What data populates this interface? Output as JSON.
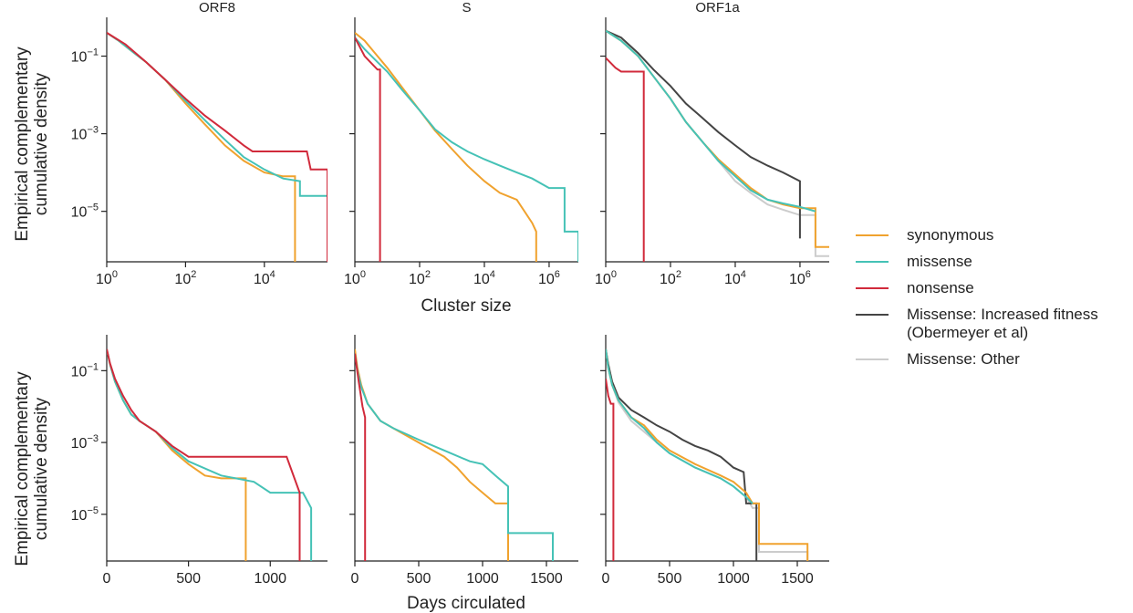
{
  "figure": {
    "ylabel_line1": "Empirical complementary",
    "ylabel_line2": "cumulative density",
    "row1_xlabel": "Cluster size",
    "row2_xlabel": "Days circulated"
  },
  "colors": {
    "synonymous": "#f0a22e",
    "missense": "#45c2b6",
    "nonsense": "#d12a3b",
    "increased": "#444444",
    "other": "#cccccc"
  },
  "legend": [
    {
      "key": "synonymous",
      "label": "synonymous"
    },
    {
      "key": "missense",
      "label": "missense"
    },
    {
      "key": "nonsense",
      "label": "nonsense"
    },
    {
      "key": "increased",
      "label": "Missense: Increased fitness\n(Obermeyer et al)"
    },
    {
      "key": "other",
      "label": "Missense: Other"
    }
  ],
  "chart_data": [
    {
      "type": "line",
      "title": "ORF8",
      "row": 0,
      "col": 0,
      "xscale": "log",
      "yscale": "log",
      "xlim": [
        1,
        400000
      ],
      "ylim": [
        5e-07,
        1
      ],
      "xticks": [
        1,
        100,
        10000
      ],
      "xticklabels": [
        "10^0",
        "10^2",
        "10^4"
      ],
      "yticks": [
        0.1,
        0.001,
        1e-05
      ],
      "yticklabels": [
        "10^-1",
        "10^-3",
        "10^-5"
      ],
      "series": [
        {
          "name": "synonymous",
          "x": [
            1,
            2,
            5,
            10,
            30,
            100,
            300,
            1000,
            3000,
            10000,
            30000,
            60000,
            60000
          ],
          "y": [
            0.4,
            0.25,
            0.12,
            0.07,
            0.025,
            0.006,
            0.0018,
            0.0005,
            0.0002,
            0.0001,
            8e-05,
            8e-05,
            5e-07
          ]
        },
        {
          "name": "missense",
          "x": [
            1,
            2,
            5,
            10,
            30,
            100,
            300,
            1000,
            3000,
            10000,
            30000,
            80000,
            80000,
            400000
          ],
          "y": [
            0.4,
            0.25,
            0.12,
            0.07,
            0.025,
            0.007,
            0.0023,
            0.0007,
            0.00025,
            0.00012,
            7e-05,
            6e-05,
            2.5e-05,
            2.5e-05
          ]
        },
        {
          "name": "nonsense",
          "x": [
            1,
            3,
            10,
            30,
            100,
            300,
            1000,
            3000,
            5000,
            30000,
            120000,
            150000,
            400000,
            400000
          ],
          "y": [
            0.4,
            0.2,
            0.07,
            0.025,
            0.008,
            0.003,
            0.0012,
            0.0005,
            0.00035,
            0.00035,
            0.00035,
            0.00012,
            0.00012,
            5e-07
          ]
        }
      ]
    },
    {
      "type": "line",
      "title": "S",
      "row": 0,
      "col": 1,
      "xscale": "log",
      "yscale": "log",
      "xlim": [
        1,
        8000000
      ],
      "ylim": [
        5e-07,
        1
      ],
      "xticks": [
        1,
        100,
        10000,
        1000000
      ],
      "xticklabels": [
        "10^0",
        "10^2",
        "10^4",
        "10^6"
      ],
      "yticks": [
        0.1,
        0.001,
        1e-05
      ],
      "yticklabels": [],
      "series": [
        {
          "name": "synonymous",
          "x": [
            1,
            2,
            5,
            10,
            30,
            100,
            300,
            1000,
            3000,
            10000,
            30000,
            100000,
            300000,
            400000,
            400000
          ],
          "y": [
            0.4,
            0.25,
            0.1,
            0.05,
            0.015,
            0.004,
            0.0012,
            0.0004,
            0.00015,
            6e-05,
            3e-05,
            2e-05,
            5e-06,
            3e-06,
            5e-07
          ]
        },
        {
          "name": "missense",
          "x": [
            1,
            2,
            5,
            10,
            30,
            100,
            300,
            1000,
            3000,
            10000,
            30000,
            100000,
            300000,
            1000000,
            3000000,
            3000000,
            8000000,
            8000000
          ],
          "y": [
            0.3,
            0.15,
            0.07,
            0.04,
            0.013,
            0.004,
            0.0013,
            0.0006,
            0.00035,
            0.00022,
            0.00015,
            0.0001,
            7e-05,
            4e-05,
            4e-05,
            3e-06,
            3e-06,
            5e-07
          ]
        },
        {
          "name": "nonsense",
          "x": [
            1,
            2,
            3,
            5,
            6,
            6
          ],
          "y": [
            0.3,
            0.1,
            0.07,
            0.045,
            0.045,
            5e-07
          ]
        }
      ]
    },
    {
      "type": "line",
      "title": "ORF1a",
      "row": 0,
      "col": 2,
      "xscale": "log",
      "yscale": "log",
      "xlim": [
        1,
        8000000
      ],
      "ylim": [
        5e-07,
        1
      ],
      "xticks": [
        1,
        100,
        10000,
        1000000
      ],
      "xticklabels": [
        "10^0",
        "10^2",
        "10^4",
        "10^6"
      ],
      "yticks": [
        0.1,
        0.001,
        1e-05
      ],
      "yticklabels": [],
      "series": [
        {
          "name": "synonymous",
          "x": [
            1,
            3,
            10,
            30,
            100,
            300,
            1000,
            3000,
            10000,
            30000,
            100000,
            300000,
            1000000,
            3000000,
            3000000,
            8000000
          ],
          "y": [
            0.45,
            0.25,
            0.1,
            0.03,
            0.008,
            0.002,
            0.0006,
            0.00022,
            9e-05,
            4e-05,
            2e-05,
            1.5e-05,
            1.2e-05,
            1.2e-05,
            1.2e-06,
            1.2e-06
          ]
        },
        {
          "name": "missense",
          "x": [
            1,
            3,
            10,
            30,
            100,
            300,
            1000,
            3000,
            10000,
            30000,
            100000,
            300000,
            1000000,
            3000000
          ],
          "y": [
            0.45,
            0.25,
            0.1,
            0.03,
            0.008,
            0.002,
            0.0006,
            0.0002,
            8e-05,
            3.5e-05,
            2e-05,
            1.6e-05,
            1.3e-05,
            1e-05
          ]
        },
        {
          "name": "nonsense",
          "x": [
            1,
            2,
            3,
            15,
            15
          ],
          "y": [
            0.09,
            0.05,
            0.04,
            0.04,
            5e-07
          ]
        },
        {
          "name": "Missense: Increased fitness\n(Obermeyer et al)",
          "x": [
            1,
            3,
            10,
            30,
            100,
            300,
            1000,
            3000,
            10000,
            30000,
            100000,
            300000,
            1000000,
            1000000
          ],
          "y": [
            0.45,
            0.3,
            0.12,
            0.045,
            0.017,
            0.006,
            0.0025,
            0.0011,
            0.0005,
            0.00025,
            0.00015,
            0.0001,
            6e-05,
            2e-06
          ]
        },
        {
          "name": "Missense: Other",
          "x": [
            1,
            3,
            10,
            30,
            100,
            300,
            1000,
            3000,
            10000,
            30000,
            100000,
            300000,
            1000000,
            3000000,
            3000000,
            8000000
          ],
          "y": [
            0.45,
            0.25,
            0.1,
            0.03,
            0.008,
            0.002,
            0.0006,
            0.0002,
            6e-05,
            3e-05,
            1.5e-05,
            1.1e-05,
            8e-06,
            8e-06,
            7e-07,
            7e-07
          ]
        }
      ]
    },
    {
      "type": "line",
      "title": "",
      "row": 1,
      "col": 0,
      "xscale": "linear",
      "yscale": "log",
      "xlim": [
        0,
        1350
      ],
      "ylim": [
        5e-07,
        1
      ],
      "xticks": [
        0,
        500,
        1000
      ],
      "xticklabels": [
        "0",
        "500",
        "1000"
      ],
      "yticks": [
        0.1,
        0.001,
        1e-05
      ],
      "yticklabels": [
        "10^-1",
        "10^-3",
        "10^-5"
      ],
      "series": [
        {
          "name": "synonymous",
          "x": [
            0,
            20,
            50,
            100,
            150,
            200,
            300,
            400,
            500,
            600,
            700,
            850,
            850
          ],
          "y": [
            0.4,
            0.15,
            0.05,
            0.015,
            0.006,
            0.004,
            0.002,
            0.0006,
            0.00025,
            0.00012,
            0.0001,
            0.0001,
            5e-07
          ]
        },
        {
          "name": "missense",
          "x": [
            0,
            20,
            50,
            100,
            150,
            200,
            300,
            400,
            500,
            700,
            900,
            1000,
            1200,
            1250,
            1250
          ],
          "y": [
            0.4,
            0.15,
            0.05,
            0.015,
            0.006,
            0.004,
            0.002,
            0.0007,
            0.0003,
            0.00012,
            8e-05,
            4e-05,
            4e-05,
            1.5e-05,
            5e-07
          ]
        },
        {
          "name": "nonsense",
          "x": [
            0,
            20,
            50,
            100,
            150,
            200,
            300,
            400,
            500,
            600,
            900,
            1100,
            1180,
            1180
          ],
          "y": [
            0.4,
            0.16,
            0.06,
            0.02,
            0.008,
            0.004,
            0.002,
            0.0008,
            0.0004,
            0.0004,
            0.0004,
            0.0004,
            4e-05,
            5e-07
          ]
        }
      ]
    },
    {
      "type": "line",
      "title": "",
      "row": 1,
      "col": 1,
      "xscale": "linear",
      "yscale": "log",
      "xlim": [
        0,
        1750
      ],
      "ylim": [
        5e-07,
        1
      ],
      "xticks": [
        0,
        500,
        1000,
        1500
      ],
      "xticklabels": [
        "0",
        "500",
        "1000",
        "1500"
      ],
      "yticks": [
        0.1,
        0.001,
        1e-05
      ],
      "yticklabels": [],
      "series": [
        {
          "name": "synonymous",
          "x": [
            0,
            20,
            50,
            100,
            200,
            300,
            500,
            700,
            800,
            900,
            1000,
            1100,
            1200,
            1200
          ],
          "y": [
            0.4,
            0.12,
            0.04,
            0.012,
            0.004,
            0.0025,
            0.001,
            0.0004,
            0.0002,
            8e-05,
            4e-05,
            2e-05,
            2e-05,
            5e-07
          ]
        },
        {
          "name": "missense",
          "x": [
            0,
            20,
            50,
            100,
            200,
            300,
            500,
            700,
            900,
            1000,
            1100,
            1200,
            1200,
            1550,
            1550
          ],
          "y": [
            0.3,
            0.1,
            0.035,
            0.012,
            0.004,
            0.0025,
            0.0012,
            0.0006,
            0.0003,
            0.00025,
            0.00012,
            6e-05,
            3e-06,
            3e-06,
            5e-07
          ]
        },
        {
          "name": "nonsense",
          "x": [
            0,
            30,
            60,
            80,
            80
          ],
          "y": [
            0.3,
            0.05,
            0.01,
            0.005,
            5e-07
          ]
        }
      ]
    },
    {
      "type": "line",
      "title": "",
      "row": 1,
      "col": 2,
      "xscale": "linear",
      "yscale": "log",
      "xlim": [
        0,
        1750
      ],
      "ylim": [
        5e-07,
        1
      ],
      "xticks": [
        0,
        500,
        1000,
        1500
      ],
      "xticklabels": [
        "0",
        "500",
        "1000",
        "1500"
      ],
      "yticks": [
        0.1,
        0.001,
        1e-05
      ],
      "yticklabels": [],
      "series": [
        {
          "name": "synonymous",
          "x": [
            0,
            20,
            50,
            100,
            200,
            300,
            400,
            500,
            700,
            900,
            1000,
            1100,
            1150,
            1200,
            1200,
            1580,
            1580
          ],
          "y": [
            0.4,
            0.12,
            0.04,
            0.015,
            0.005,
            0.003,
            0.0012,
            0.0006,
            0.00025,
            0.00012,
            8e-05,
            4e-05,
            2e-05,
            2e-05,
            1.5e-06,
            1.5e-06,
            5e-07
          ]
        },
        {
          "name": "missense",
          "x": [
            0,
            20,
            50,
            100,
            200,
            300,
            400,
            500,
            700,
            900,
            1000,
            1100,
            1150
          ],
          "y": [
            0.4,
            0.12,
            0.04,
            0.015,
            0.005,
            0.0025,
            0.001,
            0.0005,
            0.0002,
            0.0001,
            6e-05,
            3e-05,
            2e-05
          ]
        },
        {
          "name": "nonsense",
          "x": [
            0,
            20,
            40,
            60,
            60
          ],
          "y": [
            0.06,
            0.02,
            0.012,
            0.012,
            5e-07
          ]
        },
        {
          "name": "Missense: Increased fitness\n(Obermeyer et al)",
          "x": [
            0,
            20,
            50,
            100,
            200,
            300,
            400,
            500,
            600,
            700,
            800,
            900,
            1000,
            1080,
            1100,
            1100,
            1180,
            1180
          ],
          "y": [
            0.4,
            0.15,
            0.05,
            0.018,
            0.008,
            0.005,
            0.003,
            0.002,
            0.0012,
            0.0008,
            0.0006,
            0.0004,
            0.0002,
            0.00015,
            2e-05,
            2e-05,
            2e-05,
            5e-07
          ]
        },
        {
          "name": "Missense: Other",
          "x": [
            0,
            20,
            50,
            100,
            200,
            300,
            500,
            700,
            900,
            1000,
            1100,
            1150,
            1200,
            1200,
            1580,
            1580
          ],
          "y": [
            0.4,
            0.12,
            0.04,
            0.013,
            0.004,
            0.002,
            0.0005,
            0.0002,
            0.0001,
            6e-05,
            3e-05,
            1.5e-05,
            1.5e-05,
            9e-07,
            9e-07,
            5e-07
          ]
        }
      ]
    }
  ]
}
